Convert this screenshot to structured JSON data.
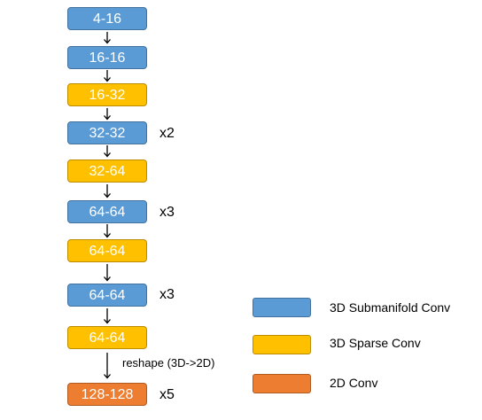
{
  "blocks": [
    {
      "label": "4-16",
      "type": "submanifold"
    },
    {
      "label": "16-16",
      "type": "submanifold"
    },
    {
      "label": "16-32",
      "type": "sparse"
    },
    {
      "label": "32-32",
      "type": "submanifold",
      "repeat": "x2"
    },
    {
      "label": "32-64",
      "type": "sparse"
    },
    {
      "label": "64-64",
      "type": "submanifold",
      "repeat": "x3"
    },
    {
      "label": "64-64",
      "type": "sparse"
    },
    {
      "label": "64-64",
      "type": "submanifold",
      "repeat": "x3"
    },
    {
      "label": "64-64",
      "type": "sparse"
    },
    {
      "label": "128-128",
      "type": "2d",
      "repeat": "x5"
    }
  ],
  "reshape_note": "reshape (3D->2D)",
  "legend": [
    {
      "label": "3D Submanifold Conv",
      "color": "#5b9bd5"
    },
    {
      "label": "3D Sparse Conv",
      "color": "#ffc000"
    },
    {
      "label": "2D Conv",
      "color": "#ed7d31"
    }
  ],
  "colors": {
    "submanifold": "#5b9bd5",
    "sparse": "#ffc000",
    "conv2d": "#ed7d31"
  }
}
